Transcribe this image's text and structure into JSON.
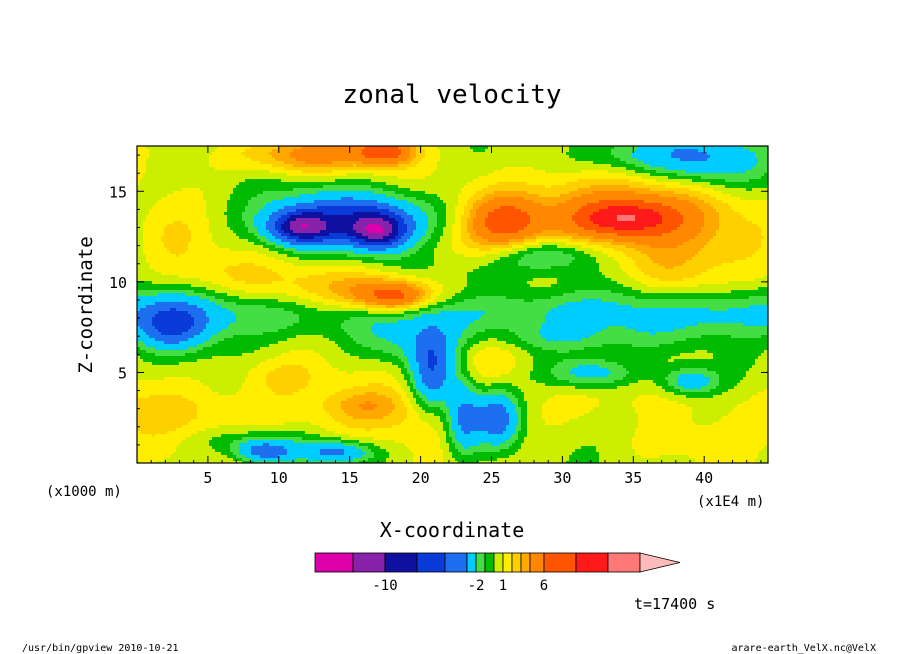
{
  "chart_data": {
    "type": "heatmap",
    "title": "zonal velocity",
    "xlabel": "X-coordinate",
    "ylabel": "Z-coordinate",
    "x_scale_label": "(x1E4 m)",
    "y_scale_label": "(x1000 m)",
    "xlim": [
      0,
      44.5
    ],
    "ylim": [
      0,
      17.5
    ],
    "x_ticks": [
      5,
      10,
      15,
      20,
      25,
      30,
      35,
      40
    ],
    "y_ticks": [
      5,
      10,
      15
    ],
    "colorbar": {
      "levels": [
        -14,
        -12,
        -10,
        -8,
        -6,
        -4,
        -2,
        -1,
        0,
        1,
        2,
        3,
        4,
        6,
        8,
        10,
        12
      ],
      "colors": [
        "#dd00aa",
        "#8822aa",
        "#1010a0",
        "#0a3ad8",
        "#1e6ef0",
        "#00ccff",
        "#44dd44",
        "#00bb00",
        "#ccee00",
        "#ffee00",
        "#ffd000",
        "#ffa800",
        "#ff8800",
        "#ff5500",
        "#ff1a1a",
        "#ff7777",
        "#ffbbbb"
      ],
      "labels": [
        {
          "value": -10,
          "text": "-10"
        },
        {
          "value": -2,
          "text": "-2"
        },
        {
          "value": 1,
          "text": "1"
        },
        {
          "value": 6,
          "text": "6"
        }
      ]
    },
    "time_label": "t=17400 s",
    "footer_left": "/usr/bin/gpview  2010-10-21",
    "footer_right": "arare-earth_VelX.nc@VelX",
    "features": [
      {
        "x": 15.5,
        "z": 13.5,
        "rx": 6,
        "rz": 1.6,
        "v": -7
      },
      {
        "x": 11.5,
        "z": 13.0,
        "rx": 2.2,
        "rz": 0.9,
        "v": -8
      },
      {
        "x": 17.0,
        "z": 12.8,
        "rx": 2.0,
        "rz": 1.0,
        "v": -8
      },
      {
        "x": 12.0,
        "z": 17.0,
        "rx": 5,
        "rz": 1.0,
        "v": 4
      },
      {
        "x": 17.5,
        "z": 17.2,
        "rx": 2,
        "rz": 0.7,
        "v": 6
      },
      {
        "x": 16.0,
        "z": 9.5,
        "rx": 7,
        "rz": 1.5,
        "v": 4
      },
      {
        "x": 18.0,
        "z": 9.2,
        "rx": 2.5,
        "rz": 0.8,
        "v": 6
      },
      {
        "x": 29.0,
        "z": 11.5,
        "rx": 3.5,
        "rz": 1.0,
        "v": -4
      },
      {
        "x": 33.0,
        "z": 13.5,
        "rx": 10,
        "rz": 2.4,
        "v": 4
      },
      {
        "x": 26.0,
        "z": 13.3,
        "rx": 2.5,
        "rz": 1.4,
        "v": 5
      },
      {
        "x": 34.5,
        "z": 13.5,
        "rx": 3.5,
        "rz": 1.0,
        "v": 6
      },
      {
        "x": 38.0,
        "z": 10.0,
        "rx": 3.0,
        "rz": 2.0,
        "v": 2
      },
      {
        "x": 36.5,
        "z": 17.0,
        "rx": 5,
        "rz": 1.2,
        "v": -4
      },
      {
        "x": 41.0,
        "z": 16.5,
        "rx": 3.5,
        "rz": 1.5,
        "v": -3
      },
      {
        "x": 2.5,
        "z": 7.5,
        "rx": 2.5,
        "rz": 1.3,
        "v": -5
      },
      {
        "x": 5.0,
        "z": 10.5,
        "rx": 4,
        "rz": 1.2,
        "v": 1
      },
      {
        "x": 2.5,
        "z": 12.5,
        "rx": 2.5,
        "rz": 1.5,
        "v": 1
      },
      {
        "x": 20.8,
        "z": 5.0,
        "rx": 1.5,
        "rz": 2.2,
        "v": -6
      },
      {
        "x": 23.0,
        "z": 2.5,
        "rx": 1.2,
        "rz": 2.0,
        "v": -6
      },
      {
        "x": 25.3,
        "z": 2.5,
        "rx": 1.6,
        "rz": 1.5,
        "v": -7
      },
      {
        "x": 24.5,
        "z": 6.0,
        "rx": 2.5,
        "rz": 1.8,
        "v": 2
      },
      {
        "x": 19.0,
        "z": 6.5,
        "rx": 4,
        "rz": 1.2,
        "v": -2
      },
      {
        "x": 32.0,
        "z": 5.0,
        "rx": 3,
        "rz": 0.9,
        "v": -4
      },
      {
        "x": 39.0,
        "z": 4.5,
        "rx": 2,
        "rz": 0.8,
        "v": -4
      },
      {
        "x": 30.5,
        "z": 6.8,
        "rx": 6,
        "rz": 0.8,
        "v": -2
      },
      {
        "x": 10.0,
        "z": 4.8,
        "rx": 3,
        "rz": 1.0,
        "v": 1.5
      },
      {
        "x": 16.0,
        "z": 3.2,
        "rx": 2.5,
        "rz": 0.8,
        "v": 1.5
      },
      {
        "x": 8.0,
        "z": 1.2,
        "rx": 4,
        "rz": 0.8,
        "v": -2
      },
      {
        "x": 9.0,
        "z": 0.6,
        "rx": 2.0,
        "rz": 0.6,
        "v": -5
      },
      {
        "x": 14.0,
        "z": 0.6,
        "rx": 2.5,
        "rz": 0.6,
        "v": -5
      },
      {
        "x": 36.0,
        "z": 2.5,
        "rx": 7,
        "rz": 1.5,
        "v": -1.5
      },
      {
        "x": 40.0,
        "z": 1.2,
        "rx": 6,
        "rz": 1.0,
        "v": 0.5
      },
      {
        "x": 22.0,
        "z": 10.5,
        "rx": 6,
        "rz": 1.2,
        "v": -2
      }
    ]
  }
}
